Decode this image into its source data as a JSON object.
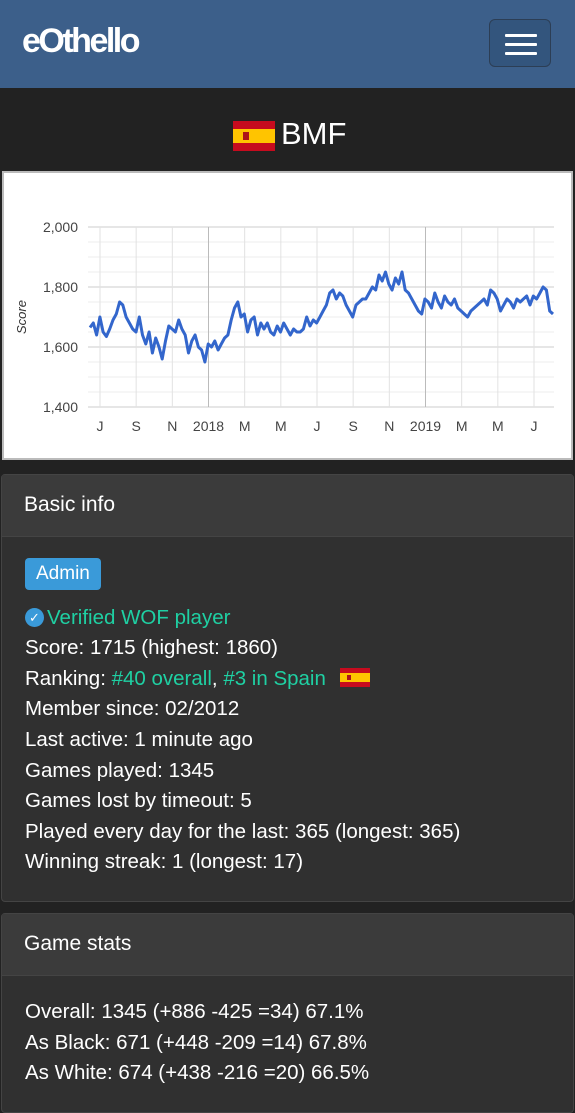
{
  "app": {
    "brand": "eOthello"
  },
  "player": {
    "name": "BMF",
    "country_flag": "spain-flag-icon"
  },
  "chart_data": {
    "type": "line",
    "ylabel": "Score",
    "ylim": [
      1400,
      2000
    ],
    "yticks": [
      "2,000",
      "1,800",
      "1,600",
      "1,400"
    ],
    "xticks": [
      "J",
      "S",
      "N",
      "2018",
      "M",
      "M",
      "J",
      "S",
      "N",
      "2019",
      "M",
      "M",
      "J"
    ],
    "series": [
      {
        "color": "#3366cc",
        "values": [
          1665,
          1680,
          1640,
          1700,
          1650,
          1635,
          1660,
          1690,
          1710,
          1750,
          1740,
          1700,
          1680,
          1660,
          1650,
          1700,
          1640,
          1610,
          1650,
          1580,
          1630,
          1600,
          1560,
          1620,
          1670,
          1660,
          1650,
          1690,
          1660,
          1640,
          1580,
          1620,
          1640,
          1600,
          1590,
          1550,
          1610,
          1600,
          1620,
          1590,
          1610,
          1630,
          1640,
          1690,
          1730,
          1750,
          1700,
          1710,
          1650,
          1690,
          1700,
          1640,
          1680,
          1660,
          1680,
          1650,
          1640,
          1670,
          1650,
          1680,
          1660,
          1640,
          1660,
          1650,
          1650,
          1660,
          1700,
          1670,
          1690,
          1680,
          1700,
          1720,
          1740,
          1780,
          1790,
          1760,
          1780,
          1770,
          1740,
          1720,
          1700,
          1740,
          1750,
          1760,
          1760,
          1780,
          1800,
          1790,
          1840,
          1820,
          1850,
          1810,
          1790,
          1830,
          1810,
          1850,
          1790,
          1780,
          1760,
          1740,
          1720,
          1710,
          1760,
          1750,
          1730,
          1780,
          1750,
          1730,
          1770,
          1750,
          1740,
          1760,
          1730,
          1720,
          1710,
          1700,
          1720,
          1730,
          1740,
          1750,
          1760,
          1740,
          1790,
          1780,
          1760,
          1720,
          1740,
          1760,
          1750,
          1730,
          1760,
          1750,
          1760,
          1770,
          1740,
          1770,
          1760,
          1780,
          1800,
          1790,
          1720,
          1710
        ]
      }
    ]
  },
  "basic_info": {
    "header": "Basic info",
    "role_badge": "Admin",
    "verified": "Verified WOF player",
    "score": "Score: 1715 (highest: 1860)",
    "ranking_label": "Ranking: ",
    "ranking_overall": "#40 overall",
    "ranking_sep": ", ",
    "ranking_country": "#3 in Spain",
    "member_since": "Member since: 02/2012",
    "last_active": "Last active: 1 minute ago",
    "games_played": "Games played: 1345",
    "games_lost_timeout": "Games lost by timeout: 5",
    "played_every_day": "Played every day for the last: 365 (longest: 365)",
    "winning_streak": "Winning streak: 1 (longest: 17)"
  },
  "game_stats": {
    "header": "Game stats",
    "overall": "Overall: 1345 (+886 -425 =34) 67.1%",
    "as_black": "As Black: 671 (+448 -209 =14) 67.8%",
    "as_white": "As White: 674 (+438 -216 =20) 66.5%"
  }
}
